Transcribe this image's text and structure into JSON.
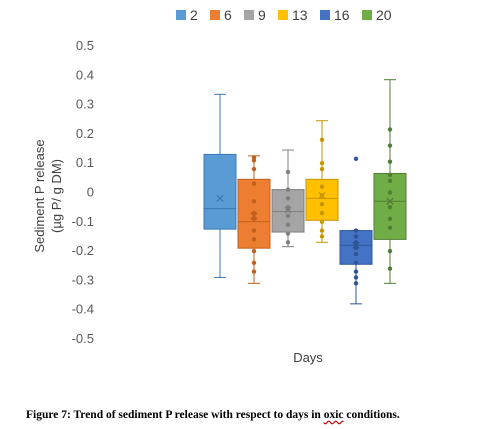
{
  "chart_data": {
    "type": "boxplot",
    "xlabel": "Days",
    "ylabel": "Sediment P release",
    "ylabel_unit": "(µg P/ g DM)",
    "ylim": [
      -0.5,
      0.5
    ],
    "yticks": [
      "0.5",
      "0.4",
      "0.3",
      "0.2",
      "0.1",
      "0",
      "-0.1",
      "-0.2",
      "-0.3",
      "-0.4",
      "-0.5"
    ],
    "ytick_values": [
      0.5,
      0.4,
      0.3,
      0.2,
      0.1,
      0,
      -0.1,
      -0.2,
      -0.3,
      -0.4,
      -0.5
    ],
    "legend_position": "top",
    "series": [
      {
        "name": "2",
        "color": "#5b9bd5",
        "edge": "#3a78b5",
        "min": -0.29,
        "q1": -0.125,
        "median": -0.055,
        "q3": 0.13,
        "max": 0.335,
        "mean": -0.02,
        "points": []
      },
      {
        "name": "6",
        "color": "#ed7d31",
        "edge": "#c0601c",
        "min": -0.31,
        "q1": -0.19,
        "median": -0.1,
        "q3": 0.045,
        "max": 0.125,
        "mean": -0.08,
        "points": [
          0.12,
          0.11,
          0.08,
          0.03,
          -0.03,
          -0.07,
          -0.09,
          -0.13,
          -0.16,
          -0.2,
          -0.24,
          -0.27
        ]
      },
      {
        "name": "9",
        "color": "#a5a5a5",
        "edge": "#7f7f7f",
        "min": -0.185,
        "q1": -0.135,
        "median": -0.065,
        "q3": 0.01,
        "max": 0.145,
        "mean": -0.06,
        "points": [
          0.07,
          0.01,
          -0.02,
          -0.05,
          -0.06,
          -0.08,
          -0.11,
          -0.14,
          -0.17
        ]
      },
      {
        "name": "13",
        "color": "#ffc000",
        "edge": "#c89600",
        "min": -0.17,
        "q1": -0.095,
        "median": -0.02,
        "q3": 0.045,
        "max": 0.245,
        "mean": -0.01,
        "points": [
          0.18,
          0.1,
          0.08,
          0.02,
          -0.01,
          -0.04,
          -0.07,
          -0.1,
          -0.13,
          -0.15
        ]
      },
      {
        "name": "16",
        "color": "#4472c4",
        "edge": "#2f5597",
        "min": -0.38,
        "q1": -0.245,
        "median": -0.18,
        "q3": -0.13,
        "max": -0.13,
        "mean": -0.18,
        "points": [
          0.115,
          -0.13,
          -0.15,
          -0.17,
          -0.19,
          -0.21,
          -0.24,
          -0.27,
          -0.29,
          -0.31
        ]
      },
      {
        "name": "20",
        "color": "#70ad47",
        "edge": "#507e32",
        "min": -0.31,
        "q1": -0.16,
        "median": -0.03,
        "q3": 0.065,
        "max": 0.385,
        "mean": -0.03,
        "points": [
          0.215,
          0.16,
          0.105,
          0.06,
          0.04,
          0.0,
          -0.05,
          -0.09,
          -0.12,
          -0.2,
          -0.26
        ]
      }
    ]
  },
  "caption": {
    "before": "Figure 7: Trend of sediment P release with respect to days in ",
    "underlined": "oxic",
    "after": " conditions."
  }
}
